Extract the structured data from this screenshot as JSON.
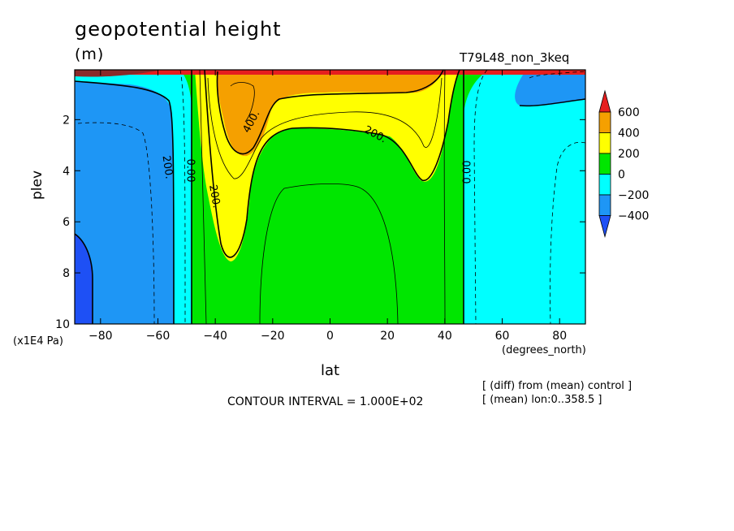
{
  "chart_data": {
    "type": "contour",
    "title": "geopotential height",
    "units": "(m)",
    "run_name": "T79L48_non_3keq",
    "xlabel": "lat",
    "x_units": "(degrees_north)",
    "ylabel": "plev",
    "y_scale_label": "(x1E4 Pa)",
    "x_ticks": [
      -80,
      -60,
      -40,
      -20,
      0,
      20,
      40,
      60,
      80
    ],
    "y_ticks": [
      2,
      4,
      6,
      8,
      10
    ],
    "xlim": [
      -89,
      89
    ],
    "ylim": [
      0.05,
      10
    ],
    "y_inverted": true,
    "contour_interval_text": "CONTOUR INTERVAL = 1.000E+02",
    "notes": [
      "[ (diff) from (mean) control ]",
      "[ (mean) lon:0..358.5 ]"
    ],
    "contour_labels": [
      "200.",
      "0.00",
      "200.",
      "400.",
      "200.",
      "0.00"
    ],
    "colorbar": {
      "levels": [
        "600",
        "400",
        "200",
        "0",
        "−200",
        "−400"
      ],
      "colors": {
        "below_minus400": "#1e50f5",
        "minus400_minus200": "#1e96f5",
        "minus200_0": "#00ffff",
        "zero_200": "#00e600",
        "200_400": "#ffff00",
        "400_600": "#f5a000",
        "above_600": "#e61e1e"
      }
    }
  }
}
